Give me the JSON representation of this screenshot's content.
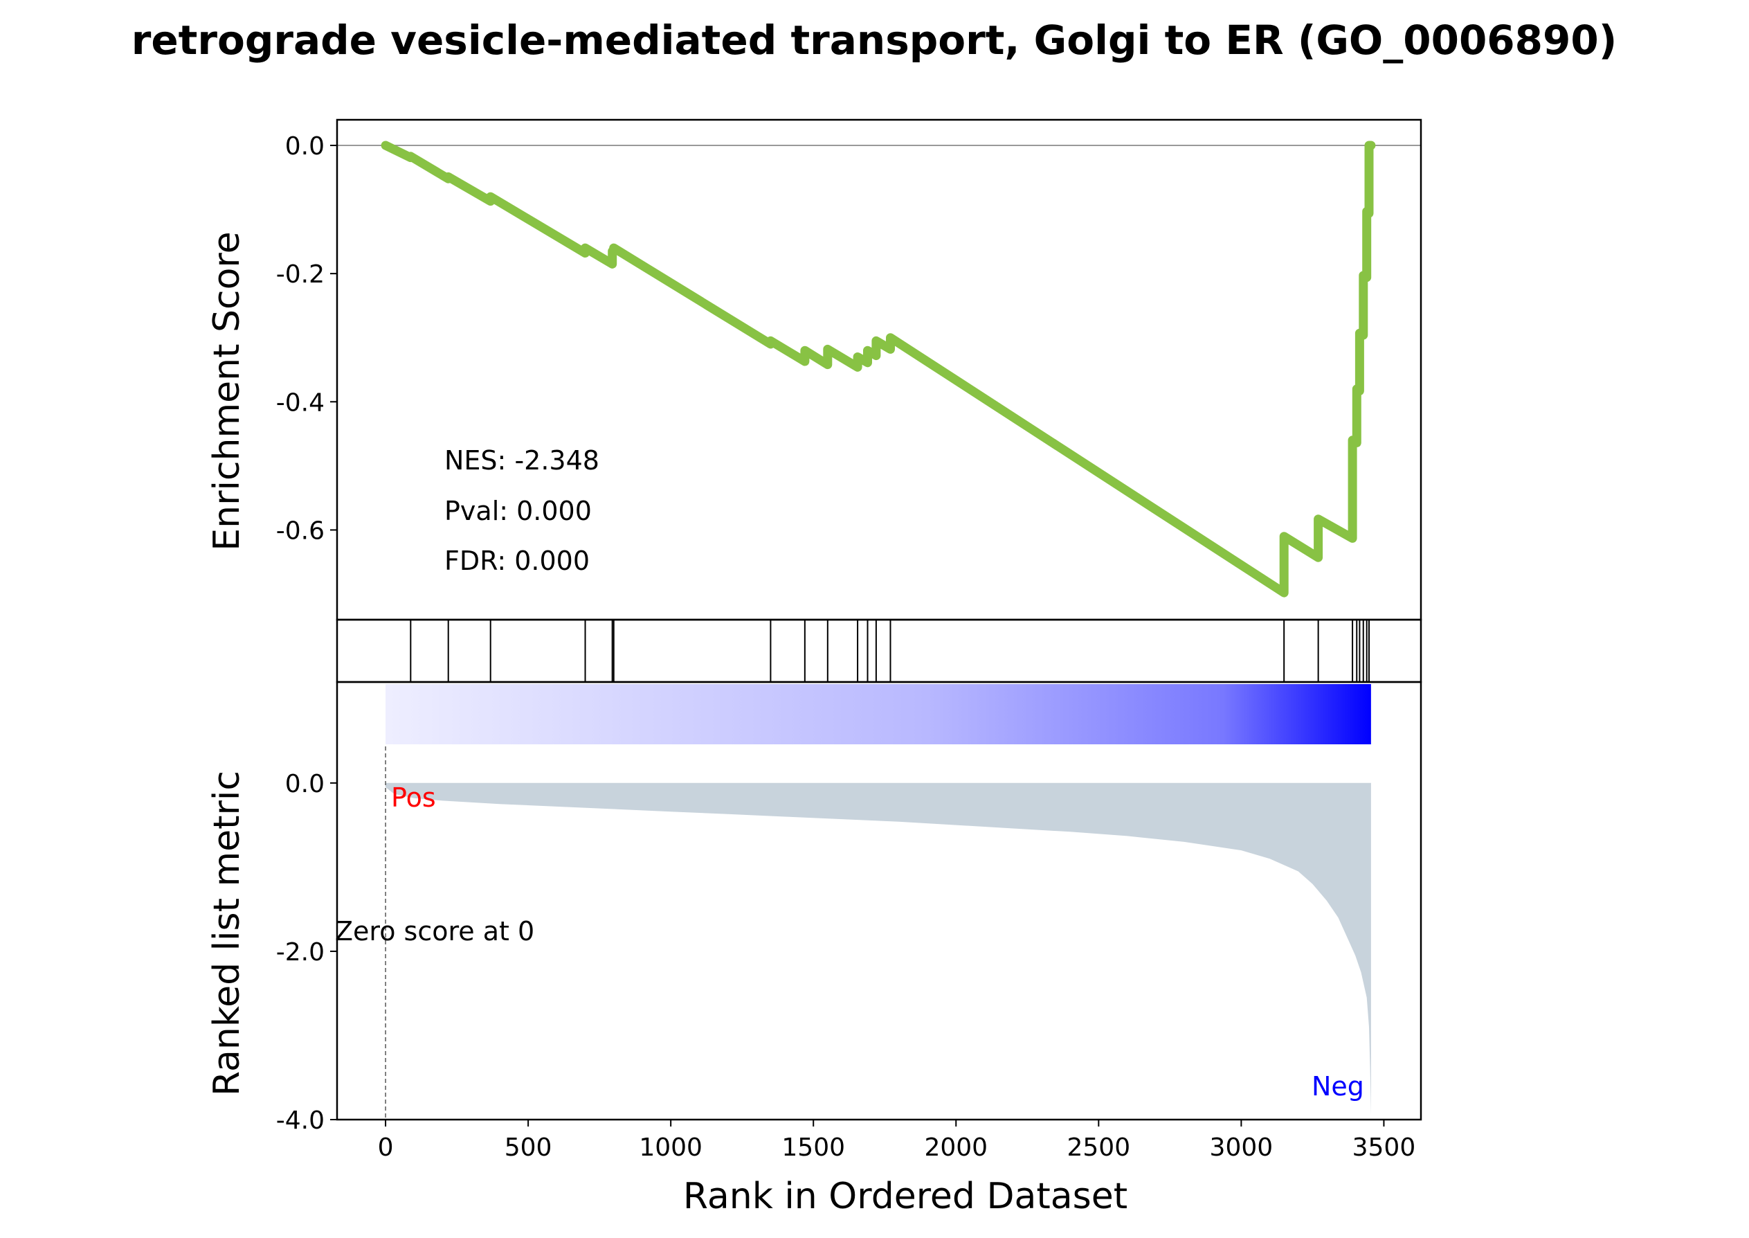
{
  "chart_data": {
    "type": "line",
    "title": "retrograde vesicle-mediated transport, Golgi to ER (GO_0006890)",
    "es_panel": {
      "ylabel": "Enrichment Score",
      "ylim": [
        -0.74,
        0.04
      ],
      "yticks": [
        "0.0",
        "-0.2",
        "-0.4",
        "-0.6"
      ],
      "ytick_values": [
        0.0,
        -0.2,
        -0.4,
        -0.6
      ],
      "line_color": "#88c244",
      "series": [
        {
          "x": [
            0,
            88,
            88,
            220,
            220,
            368,
            368,
            700,
            700,
            795,
            795,
            800,
            800,
            1350,
            1350,
            1470,
            1470,
            1550,
            1550,
            1655,
            1655,
            1690,
            1690,
            1720,
            1720,
            1770,
            1770,
            3150,
            3150,
            3270,
            3270,
            3390,
            3390,
            3405,
            3405,
            3415,
            3415,
            3428,
            3428,
            3440,
            3440,
            3448,
            3448,
            3455
          ],
          "y": [
            0.0,
            -0.019,
            -0.017,
            -0.052,
            -0.049,
            -0.087,
            -0.08,
            -0.168,
            -0.16,
            -0.185,
            -0.165,
            -0.166,
            -0.16,
            -0.31,
            -0.305,
            -0.337,
            -0.32,
            -0.342,
            -0.318,
            -0.346,
            -0.33,
            -0.339,
            -0.32,
            -0.328,
            -0.305,
            -0.318,
            -0.3,
            -0.698,
            -0.61,
            -0.643,
            -0.583,
            -0.613,
            -0.46,
            -0.464,
            -0.38,
            -0.383,
            -0.293,
            -0.296,
            -0.203,
            -0.206,
            -0.103,
            -0.106,
            0.0,
            0.0
          ]
        }
      ],
      "annotations": [
        "NES: -2.348",
        "Pval: 0.000",
        "FDR: 0.000"
      ]
    },
    "hits_panel": {
      "hit_ranks": [
        88,
        220,
        368,
        700,
        795,
        800,
        1350,
        1470,
        1550,
        1655,
        1690,
        1720,
        1770,
        3150,
        3270,
        3390,
        3405,
        3415,
        3428,
        3440,
        3448
      ]
    },
    "heatbar": {
      "colors": [
        "#eeeeff",
        "#0000ff"
      ]
    },
    "metric_panel": {
      "ylabel": "Ranked list metric",
      "ylim": [
        -4.0,
        1.2
      ],
      "yticks": [
        "0.0",
        "-2.0",
        "-4.0"
      ],
      "ytick_values": [
        0.0,
        -2.0,
        -4.0
      ],
      "fill_color": "#c8d3dc",
      "x": [
        0,
        30,
        100,
        200,
        400,
        600,
        800,
        1000,
        1200,
        1400,
        1600,
        1800,
        2000,
        2200,
        2400,
        2600,
        2800,
        2900,
        3000,
        3100,
        3200,
        3250,
        3300,
        3340,
        3380,
        3400,
        3420,
        3430,
        3440,
        3448,
        3452,
        3455
      ],
      "values": [
        -0.05,
        -0.13,
        -0.18,
        -0.21,
        -0.25,
        -0.28,
        -0.31,
        -0.34,
        -0.37,
        -0.4,
        -0.43,
        -0.46,
        -0.5,
        -0.54,
        -0.58,
        -0.63,
        -0.7,
        -0.75,
        -0.8,
        -0.9,
        -1.05,
        -1.2,
        -1.4,
        -1.6,
        -1.9,
        -2.05,
        -2.25,
        -2.4,
        -2.55,
        -2.9,
        -3.4,
        -3.95
      ],
      "pos_label": "Pos",
      "neg_label": "Neg",
      "zero_label": "Zero score at 0",
      "zero_rank": 0
    },
    "x_axis": {
      "xlabel": "Rank in Ordered Dataset",
      "xlim": [
        -170,
        3630
      ],
      "xticks": [
        "0",
        "500",
        "1000",
        "1500",
        "2000",
        "2500",
        "3000",
        "3500"
      ],
      "xtick_values": [
        0,
        500,
        1000,
        1500,
        2000,
        2500,
        3000,
        3500
      ]
    }
  }
}
